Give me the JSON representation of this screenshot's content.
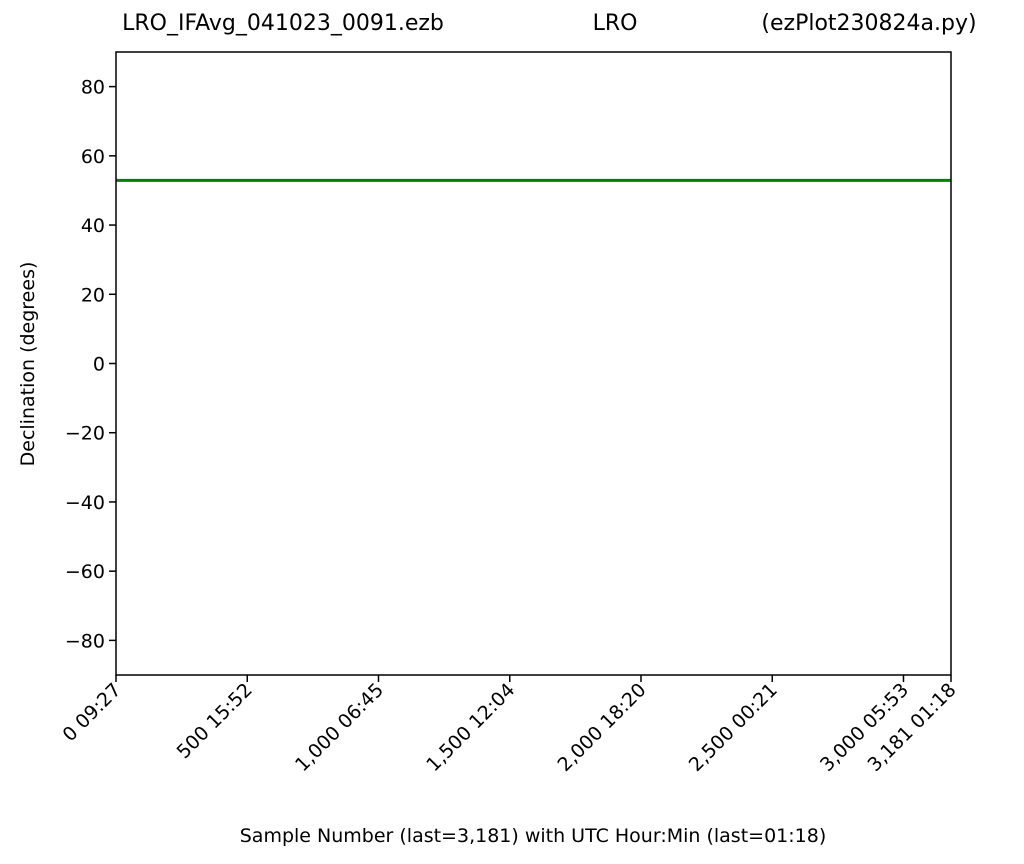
{
  "chart_data": {
    "type": "line",
    "title": [
      "LRO_IFAvg_041023_0091.ezb",
      "LRO",
      "(ezPlot230824a.py)"
    ],
    "xlabel": "Sample Number (last=3,181) with UTC Hour:Min (last=01:18)",
    "ylabel": "Declination (degrees)",
    "x": [
      0,
      3181
    ],
    "series": [
      {
        "color": "#008000",
        "values": [
          52.9,
          52.9
        ]
      }
    ],
    "xlim": [
      0,
      3181
    ],
    "ylim": [
      -90,
      90
    ],
    "xticks": [
      {
        "value": 0,
        "label": "0  09:27"
      },
      {
        "value": 500,
        "label": "500  15:52"
      },
      {
        "value": 1000,
        "label": "1,000  06:45"
      },
      {
        "value": 1500,
        "label": "1,500  12:04"
      },
      {
        "value": 2000,
        "label": "2,000  18:20"
      },
      {
        "value": 2500,
        "label": "2,500  00:21"
      },
      {
        "value": 3000,
        "label": "3,000  05:53"
      },
      {
        "value": 3181,
        "label": "3,181  01:18"
      }
    ],
    "yticks": [
      {
        "value": -80,
        "label": "−80"
      },
      {
        "value": -60,
        "label": "−60"
      },
      {
        "value": -40,
        "label": "−40"
      },
      {
        "value": -20,
        "label": "−20"
      },
      0,
      20,
      40,
      60,
      80
    ],
    "grid": false
  }
}
